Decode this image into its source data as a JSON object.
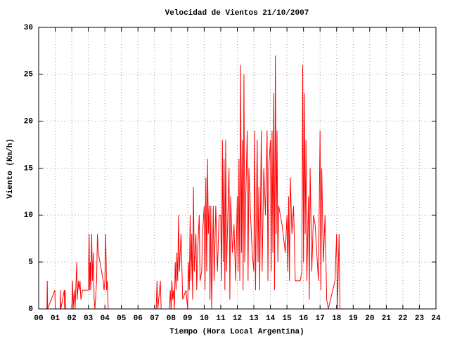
{
  "chart_data": {
    "type": "line",
    "title": "Velocidad de Vientos 21/10/2007",
    "xlabel": "Tiempo (Hora Local Argentina)",
    "ylabel": "Viento (Km/h)",
    "color": "#ff0000",
    "grid": true,
    "xlim": [
      0,
      24
    ],
    "ylim": [
      0,
      30
    ],
    "xticks": [
      {
        "value": 0,
        "label": "00"
      },
      {
        "value": 1,
        "label": "01"
      },
      {
        "value": 2,
        "label": "02"
      },
      {
        "value": 3,
        "label": "03"
      },
      {
        "value": 4,
        "label": "04"
      },
      {
        "value": 5,
        "label": "05"
      },
      {
        "value": 6,
        "label": "06"
      },
      {
        "value": 7,
        "label": "07"
      },
      {
        "value": 8,
        "label": "08"
      },
      {
        "value": 9,
        "label": "09"
      },
      10,
      11,
      12,
      13,
      14,
      15,
      16,
      17,
      18,
      19,
      20,
      21,
      22,
      23,
      24
    ],
    "yticks": [
      0,
      5,
      10,
      15,
      20,
      25,
      30
    ],
    "x": [
      0.5,
      0.52,
      0.54,
      0.98,
      1.0,
      1.3,
      1.32,
      1.34,
      1.55,
      1.57,
      1.6,
      1.62,
      2.0,
      2.05,
      2.08,
      2.15,
      2.2,
      2.3,
      2.33,
      2.4,
      2.45,
      2.5,
      2.55,
      2.65,
      3.0,
      3.05,
      3.08,
      3.12,
      3.15,
      3.2,
      3.25,
      3.3,
      3.35,
      3.4,
      3.5,
      3.55,
      3.6,
      3.9,
      3.95,
      4.0,
      4.05,
      4.1,
      4.15,
      4.2,
      4.3,
      7.1,
      7.15,
      7.2,
      7.35,
      7.4,
      7.9,
      7.95,
      8.0,
      8.05,
      8.1,
      8.15,
      8.2,
      8.25,
      8.3,
      8.35,
      8.4,
      8.45,
      8.5,
      8.6,
      8.7,
      8.9,
      9.0,
      9.05,
      9.1,
      9.15,
      9.2,
      9.25,
      9.3,
      9.35,
      9.4,
      9.5,
      9.55,
      9.6,
      9.7,
      9.75,
      9.85,
      9.9,
      10.0,
      10.05,
      10.1,
      10.15,
      10.2,
      10.25,
      10.3,
      10.35,
      10.4,
      10.45,
      10.55,
      10.6,
      10.7,
      10.8,
      10.9,
      11.0,
      11.05,
      11.1,
      11.15,
      11.2,
      11.25,
      11.3,
      11.35,
      11.4,
      11.5,
      11.55,
      11.6,
      11.7,
      11.8,
      11.9,
      12.0,
      12.05,
      12.1,
      12.15,
      12.2,
      12.25,
      12.3,
      12.35,
      12.4,
      12.45,
      12.5,
      12.6,
      12.65,
      12.7,
      12.8,
      12.9,
      13.0,
      13.05,
      13.1,
      13.2,
      13.25,
      13.3,
      13.35,
      13.45,
      13.5,
      13.6,
      13.7,
      13.8,
      13.85,
      13.9,
      14.0,
      14.05,
      14.1,
      14.15,
      14.2,
      14.25,
      14.3,
      14.35,
      14.4,
      14.45,
      14.5,
      14.7,
      14.9,
      15.0,
      15.05,
      15.1,
      15.15,
      15.2,
      15.3,
      15.4,
      15.5,
      15.6,
      15.8,
      15.9,
      15.95,
      16.0,
      16.05,
      16.1,
      16.15,
      16.2,
      16.3,
      16.35,
      16.4,
      16.5,
      16.6,
      16.7,
      16.8,
      16.9,
      17.0,
      17.05,
      17.1,
      17.2,
      17.3,
      17.4,
      17.5,
      17.9,
      18.0,
      18.05,
      18.1,
      18.15,
      18.2,
      18.3
    ],
    "values": [
      0,
      3,
      0,
      2,
      0,
      0,
      2,
      0,
      2,
      0,
      2,
      0,
      0,
      3,
      0,
      2,
      0,
      5,
      1,
      3,
      2,
      3,
      1,
      2,
      2,
      8,
      2,
      5,
      2,
      8,
      3,
      6,
      1,
      0,
      3,
      8,
      6,
      3,
      2,
      3,
      8,
      2,
      3,
      0,
      0,
      0,
      3,
      0,
      3,
      0,
      0,
      2,
      0,
      3,
      1,
      2,
      0,
      5,
      2,
      6,
      3,
      10,
      4,
      8,
      1,
      2,
      0,
      5,
      2,
      10,
      3,
      8,
      1,
      13,
      4,
      8,
      2,
      6,
      10,
      3,
      4,
      8,
      11,
      2,
      14,
      4,
      16,
      8,
      11,
      1,
      11,
      0,
      11,
      3,
      11,
      4,
      10,
      10,
      3,
      18,
      5,
      16,
      2,
      18,
      4,
      8,
      15,
      1,
      12,
      6,
      9,
      3,
      12,
      4,
      16,
      3,
      26,
      6,
      18,
      2,
      25,
      5,
      11,
      19,
      3,
      15,
      10,
      6,
      4,
      19,
      2,
      18,
      5,
      13,
      2,
      19,
      4,
      15,
      10,
      19,
      3,
      15,
      18,
      4,
      19,
      6,
      23,
      2,
      27,
      8,
      19,
      5,
      11,
      9,
      6,
      10,
      4,
      12,
      3,
      14,
      8,
      11,
      3,
      3,
      3,
      4,
      26,
      5,
      23,
      8,
      18,
      3,
      12,
      1,
      15,
      4,
      10,
      9,
      6,
      3,
      19,
      2,
      15,
      5,
      10,
      1,
      0,
      3,
      8,
      0,
      4,
      8,
      0,
      0
    ]
  }
}
